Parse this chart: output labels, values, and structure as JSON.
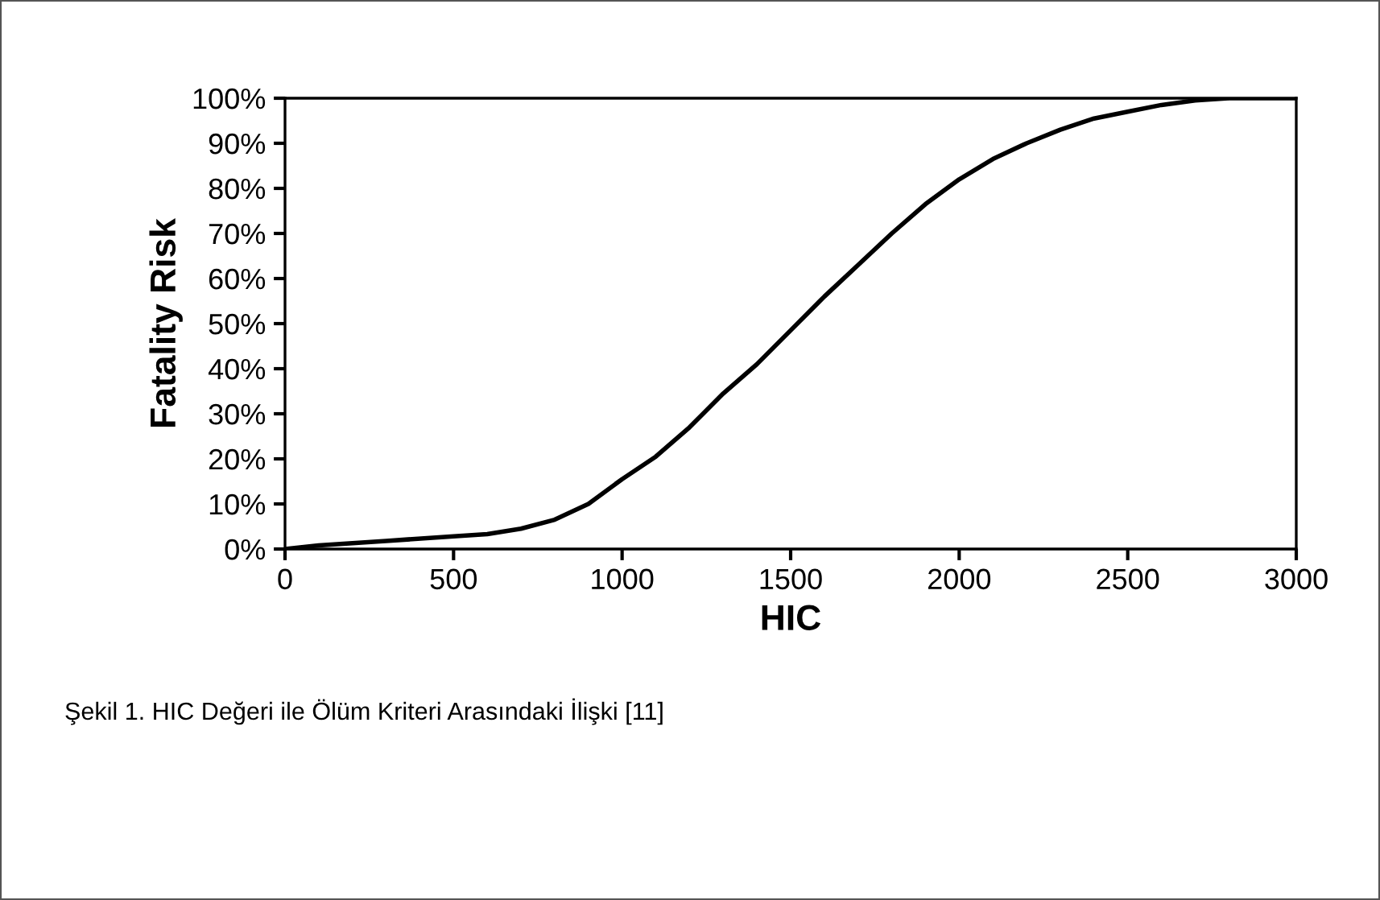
{
  "chart_data": {
    "type": "line",
    "xlabel": "HIC",
    "ylabel": "Fatality Risk",
    "annotations": [
      "Şekil 1. HIC Değeri ile Ölüm Kriteri Arasındaki İlişki [11]"
    ],
    "x": [
      0,
      100,
      300,
      500,
      600,
      700,
      800,
      900,
      1000,
      1100,
      1200,
      1300,
      1400,
      1500,
      1600,
      1700,
      1800,
      1900,
      2000,
      2100,
      2200,
      2300,
      2400,
      2500,
      2600,
      2700,
      2800,
      3000
    ],
    "series": [
      {
        "color": "#000000",
        "values": [
          0,
          0.8,
          1.8,
          2.8,
          3.3,
          4.5,
          6.5,
          10,
          15.5,
          20.5,
          27,
          34.5,
          41,
          48.5,
          56,
          63,
          70,
          76.5,
          82,
          86.5,
          90,
          93,
          95.5,
          97,
          98.5,
          99.5,
          100,
          100
        ]
      }
    ],
    "xlim": [
      0,
      3000
    ],
    "xticks": [
      0,
      500,
      1000,
      1500,
      2000,
      2500,
      3000
    ],
    "ylim": [
      0,
      100
    ],
    "yticks": [
      {
        "value": 0,
        "label": "0%"
      },
      {
        "value": 10,
        "label": "10%"
      },
      {
        "value": 20,
        "label": "20%"
      },
      {
        "value": 30,
        "label": "30%"
      },
      {
        "value": 40,
        "label": "40%"
      },
      {
        "value": 50,
        "label": "50%"
      },
      {
        "value": 60,
        "label": "60%"
      },
      {
        "value": 70,
        "label": "70%"
      },
      {
        "value": 80,
        "label": "80%"
      },
      {
        "value": 90,
        "label": "90%"
      },
      {
        "value": 100,
        "label": "100%"
      }
    ],
    "grid": false,
    "marker": "none",
    "line_style": "solid"
  }
}
